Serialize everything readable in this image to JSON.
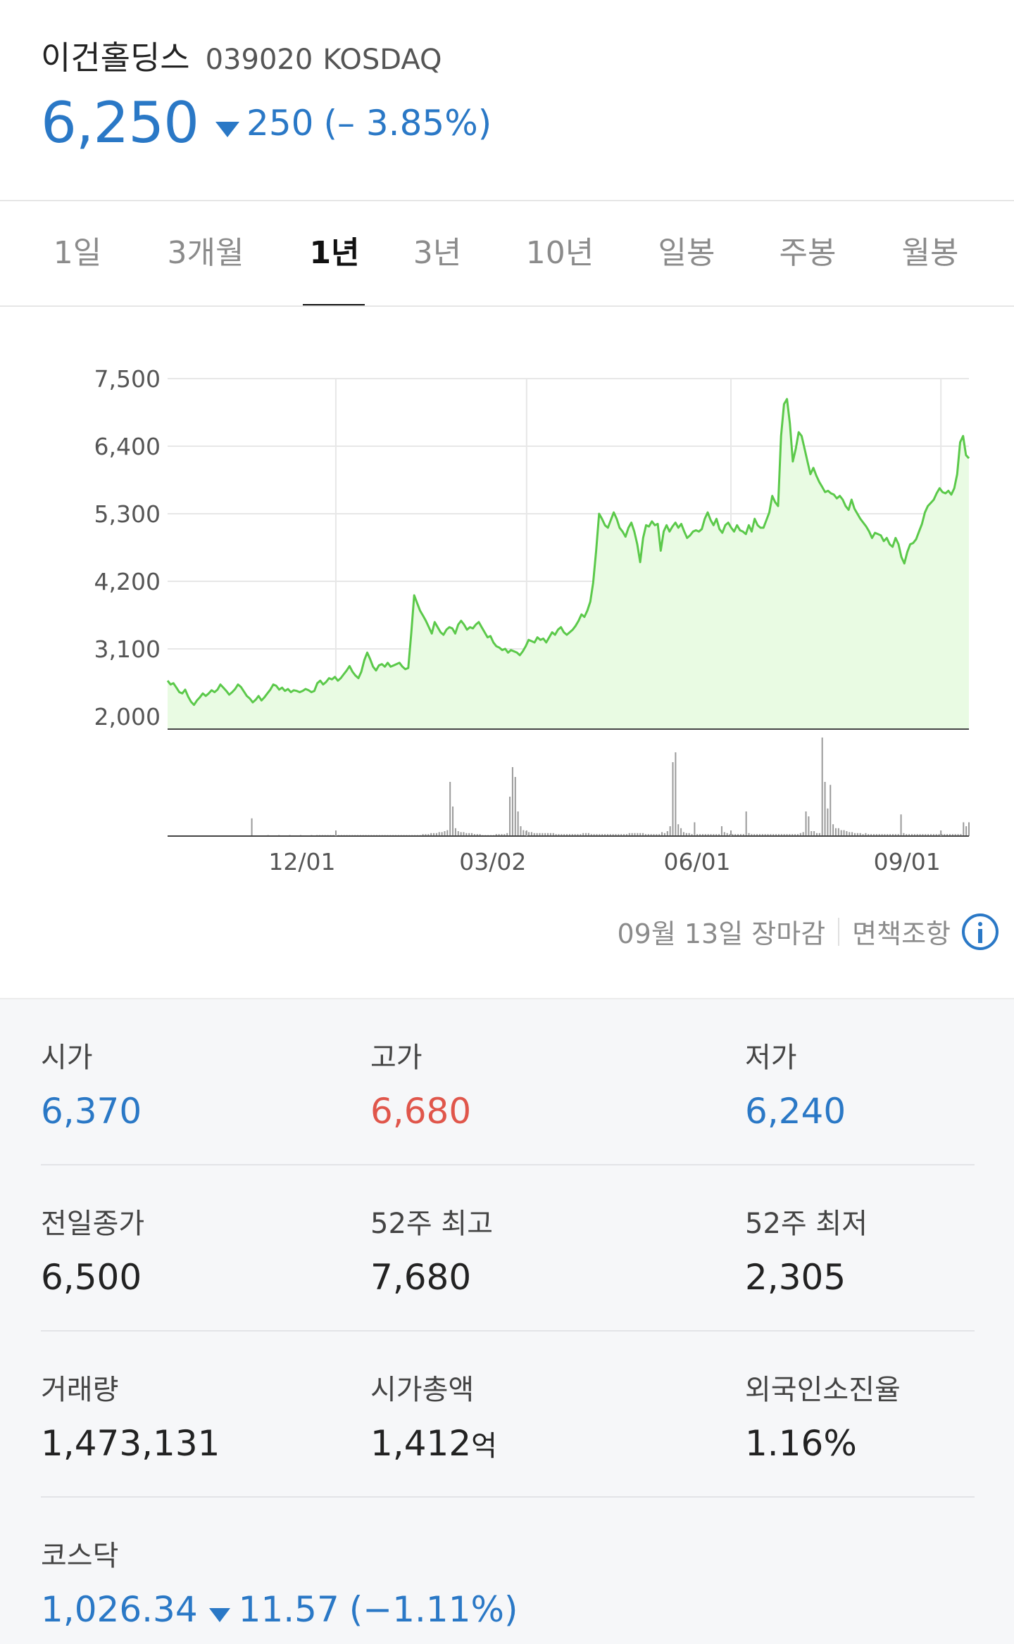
{
  "stock": {
    "name": "이건홀딩스",
    "code": "039020",
    "market": "KOSDAQ",
    "price": "6,250",
    "change": "250",
    "change_pct": "(– 3.85%)",
    "direction": "down",
    "color_down": "#2a78c6",
    "color_up": "#e0564b"
  },
  "tabs": [
    {
      "label": "1일"
    },
    {
      "label": "3개월"
    },
    {
      "label": "1년",
      "active": true
    },
    {
      "label": "3년"
    },
    {
      "label": "10년"
    },
    {
      "label": "일봉"
    },
    {
      "label": "주봉"
    },
    {
      "label": "월봉"
    }
  ],
  "chart_data": {
    "type": "area",
    "line_color": "#5bc94a",
    "fill_color": "#e9fbe3",
    "y_ticks": [
      "7,500",
      "6,400",
      "5,300",
      "4,200",
      "3,100",
      "2,000"
    ],
    "x_ticks": [
      "12/01",
      "03/02",
      "06/01",
      "09/01"
    ],
    "ylim": [
      2000,
      7500
    ],
    "grid": true,
    "series": [
      {
        "values": [
          2760,
          2700,
          2720,
          2650,
          2580,
          2560,
          2620,
          2510,
          2430,
          2380,
          2450,
          2500,
          2560,
          2520,
          2560,
          2610,
          2580,
          2620,
          2700,
          2650,
          2600,
          2540,
          2580,
          2630,
          2700,
          2660,
          2590,
          2520,
          2480,
          2420,
          2460,
          2520,
          2450,
          2500,
          2560,
          2620,
          2700,
          2680,
          2620,
          2650,
          2600,
          2630,
          2580,
          2610,
          2600,
          2580,
          2600,
          2630,
          2610,
          2580,
          2600,
          2720,
          2760,
          2700,
          2740,
          2800,
          2780,
          2820,
          2760,
          2800,
          2860,
          2920,
          2990,
          2900,
          2840,
          2800,
          2900,
          3080,
          3200,
          3100,
          2980,
          2920,
          3000,
          3020,
          2980,
          3040,
          2980,
          3000,
          3020,
          3040,
          2980,
          2940,
          2960,
          3500,
          4100,
          3980,
          3860,
          3780,
          3700,
          3600,
          3500,
          3680,
          3600,
          3520,
          3480,
          3560,
          3600,
          3580,
          3500,
          3640,
          3700,
          3640,
          3560,
          3600,
          3580,
          3640,
          3680,
          3600,
          3520,
          3440,
          3460,
          3360,
          3300,
          3280,
          3240,
          3260,
          3200,
          3240,
          3220,
          3200,
          3160,
          3220,
          3300,
          3400,
          3380,
          3360,
          3440,
          3400,
          3420,
          3360,
          3440,
          3520,
          3480,
          3560,
          3600,
          3520,
          3480,
          3520,
          3560,
          3620,
          3700,
          3800,
          3760,
          3860,
          4000,
          4300,
          4800,
          5380,
          5300,
          5200,
          5160,
          5280,
          5400,
          5300,
          5160,
          5100,
          5020,
          5160,
          5240,
          5100,
          4900,
          4620,
          5000,
          5200,
          5180,
          5260,
          5200,
          5220,
          4800,
          5100,
          5200,
          5100,
          5180,
          5240,
          5160,
          5220,
          5100,
          5000,
          5040,
          5100,
          5120,
          5100,
          5140,
          5300,
          5400,
          5280,
          5200,
          5300,
          5140,
          5080,
          5200,
          5240,
          5160,
          5100,
          5200,
          5120,
          5100,
          5060,
          5200,
          5100,
          5300,
          5200,
          5160,
          5160,
          5280,
          5400,
          5660,
          5560,
          5500,
          6600,
          7100,
          7180,
          6800,
          6200,
          6400,
          6660,
          6600,
          6400,
          6200,
          6000,
          6100,
          5980,
          5880,
          5800,
          5720,
          5740,
          5700,
          5680,
          5620,
          5660,
          5600,
          5500,
          5440,
          5600,
          5460,
          5380,
          5300,
          5240,
          5180,
          5100,
          5000,
          5080,
          5060,
          5040,
          4950,
          5000,
          4900,
          4860,
          5000,
          4900,
          4700,
          4600,
          4780,
          4900,
          4920,
          4980,
          5100,
          5220,
          5400,
          5500,
          5550,
          5600,
          5700,
          5780,
          5720,
          5700,
          5740,
          5680,
          5780,
          6000,
          6500,
          6600,
          6300,
          6250
        ]
      }
    ],
    "volume": {
      "ylim": [
        0,
        100
      ],
      "values": [
        0,
        0,
        0,
        0,
        0,
        0,
        0,
        0,
        0,
        0,
        0,
        0,
        0,
        0,
        0,
        0,
        0,
        0,
        0,
        0,
        0,
        0,
        0,
        0,
        0,
        0,
        0,
        0,
        0,
        0,
        0,
        18,
        0,
        0,
        0,
        0,
        0,
        1,
        0,
        0,
        0,
        1,
        0,
        0,
        0,
        1,
        0,
        0,
        0,
        1,
        0,
        0,
        0,
        1,
        0,
        1,
        1,
        1,
        1,
        1,
        1,
        1,
        1,
        1,
        1,
        1,
        1,
        1,
        1,
        1,
        1,
        1,
        1,
        1,
        1,
        1,
        1,
        1,
        1,
        1,
        1,
        1,
        1,
        1,
        1,
        1,
        1,
        1,
        1,
        1,
        1,
        1,
        1,
        1,
        2,
        2,
        2,
        3,
        3,
        3,
        4,
        4,
        5,
        6,
        55,
        30,
        8,
        5,
        4,
        4,
        3,
        3,
        3,
        2,
        2,
        2,
        1,
        1,
        1,
        1,
        1,
        2,
        2,
        2,
        2,
        3,
        40,
        70,
        60,
        25,
        10,
        6,
        5,
        4,
        4,
        3,
        3,
        3,
        3,
        3,
        3,
        3,
        3,
        2,
        2,
        2,
        2,
        2,
        2,
        2,
        2,
        2,
        2,
        3,
        3,
        3,
        2,
        2,
        2,
        2,
        2,
        2,
        2,
        2,
        2,
        2,
        2,
        2,
        2,
        2,
        3,
        3,
        3,
        3,
        3,
        3,
        2,
        2,
        2,
        2,
        2,
        2,
        4,
        3,
        5,
        10,
        75,
        85,
        12,
        8,
        4,
        3,
        3,
        2,
        14,
        2,
        2,
        2,
        2,
        2,
        2,
        2,
        2,
        2,
        10,
        4,
        3,
        2,
        2,
        2,
        2,
        2,
        2,
        25,
        3,
        2,
        2,
        2,
        2,
        2,
        2,
        2,
        2,
        2,
        2,
        2,
        2,
        2,
        2,
        2,
        2,
        2,
        2,
        3,
        4,
        25,
        20,
        5,
        5,
        3,
        3,
        100,
        55,
        28,
        52,
        12,
        8,
        8,
        6,
        6,
        5,
        4,
        4,
        3,
        3,
        3,
        2,
        3,
        2,
        2,
        2,
        2,
        2,
        2,
        2,
        2,
        2,
        2,
        2,
        2,
        22,
        3,
        2,
        2,
        2,
        2,
        2,
        2,
        2,
        2,
        2,
        2,
        2,
        2,
        2,
        2,
        2,
        2,
        2,
        2,
        2,
        2,
        2,
        14,
        10,
        14
      ]
    }
  },
  "chart_footer": {
    "close_note": "09월 13일 장마감",
    "disclaimer": "면책조항",
    "info_icon": "info-icon"
  },
  "stats": {
    "open": {
      "label": "시가",
      "value": "6,370"
    },
    "high": {
      "label": "고가",
      "value": "6,680"
    },
    "low": {
      "label": "저가",
      "value": "6,240"
    },
    "prev_close": {
      "label": "전일종가",
      "value": "6,500"
    },
    "high_52w": {
      "label": "52주 최고",
      "value": "7,680"
    },
    "low_52w": {
      "label": "52주 최저",
      "value": "2,305"
    },
    "volume": {
      "label": "거래량",
      "value": "1,473,131"
    },
    "market_cap": {
      "label": "시가총액",
      "value": "1,412",
      "unit": "억"
    },
    "foreign_ratio": {
      "label": "외국인소진율",
      "value": "1.16%"
    }
  },
  "index": {
    "label": "코스닥",
    "value": "1,026.34",
    "change": "11.57",
    "change_pct": "(−1.11%)",
    "direction": "down"
  }
}
